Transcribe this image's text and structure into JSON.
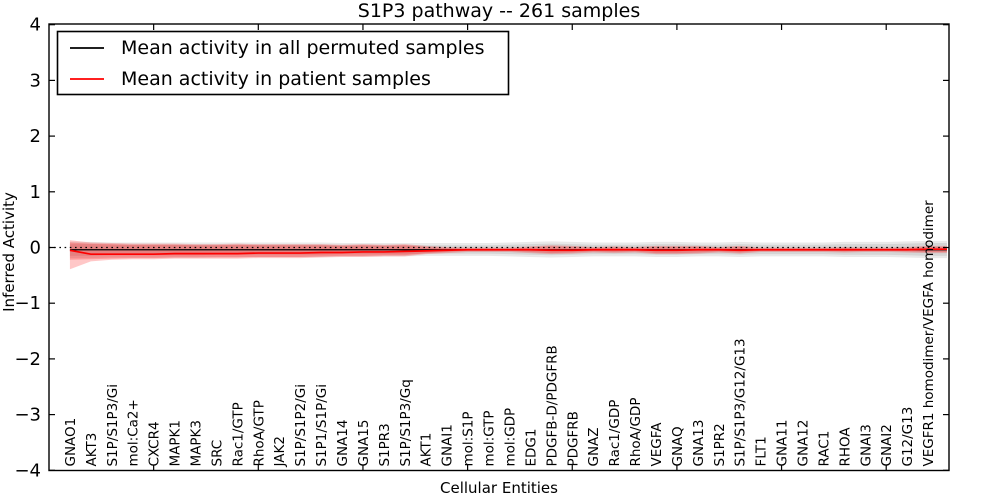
{
  "figure": {
    "title": "S1P3 pathway -- 261 samples",
    "xlabel": "Cellular Entities",
    "ylabel": "Inferred Activity",
    "legend": [
      {
        "label": "Mean activity in all permuted samples",
        "color": "#000000"
      },
      {
        "label": "Mean activity in patient samples",
        "color": "#ff0000"
      }
    ]
  },
  "chart_data": {
    "type": "line",
    "title": "S1P3 pathway -- 261 samples",
    "xlabel": "Cellular Entities",
    "ylabel": "Inferred Activity",
    "ylim": [
      -4,
      4
    ],
    "yticks": [
      -4,
      -3,
      -2,
      -1,
      0,
      1,
      2,
      3,
      4
    ],
    "xtick_indices": [
      4,
      9,
      14,
      19,
      24,
      29,
      34,
      39
    ],
    "grid": false,
    "zero_line": true,
    "legend_position": "upper left",
    "categories": [
      "GNAO1",
      "AKT3",
      "S1P/S1P3/Gi",
      "mol:Ca2+",
      "CXCR4",
      "MAPK1",
      "MAPK3",
      "SRC",
      "Rac1/GTP",
      "RhoA/GTP",
      "JAK2",
      "S1P/S1P2/Gi",
      "S1P1/S1P/Gi",
      "GNA14",
      "GNA15",
      "S1PR3",
      "S1P/S1P3/Gq",
      "AKT1",
      "GNAI1",
      "mol:S1P",
      "mol:GTP",
      "mol:GDP",
      "EDG1",
      "PDGFB-D/PDGFRB",
      "PDGFRB",
      "GNAZ",
      "Rac1/GDP",
      "RhoA/GDP",
      "VEGFA",
      "GNAQ",
      "GNA13",
      "S1PR2",
      "S1P/S1P3/G12/G13",
      "FLT1",
      "GNA11",
      "GNA12",
      "RAC1",
      "RHOA",
      "GNAI3",
      "GNAI2",
      "G12/G13",
      "VEGFR1 homodimer/VEGFA homodimer"
    ],
    "series": [
      {
        "name": "Mean activity in all permuted samples",
        "color": "#000000",
        "band_color": "#555555",
        "band_opacity": 0.13,
        "values": [
          -0.04,
          -0.04,
          -0.04,
          -0.04,
          -0.04,
          -0.04,
          -0.04,
          -0.04,
          -0.04,
          -0.04,
          -0.04,
          -0.04,
          -0.04,
          -0.04,
          -0.04,
          -0.04,
          -0.04,
          -0.04,
          -0.04,
          -0.04,
          -0.04,
          -0.04,
          -0.04,
          -0.04,
          -0.04,
          -0.04,
          -0.04,
          -0.04,
          -0.04,
          -0.04,
          -0.04,
          -0.04,
          -0.04,
          -0.04,
          -0.04,
          -0.04,
          -0.04,
          -0.04,
          -0.04,
          -0.04,
          -0.04,
          -0.04
        ],
        "band_inner": {
          "upper": [
            0.06,
            0.06,
            0.05,
            0.05,
            0.05,
            0.05,
            0.05,
            0.05,
            0.05,
            0.05,
            0.05,
            0.05,
            0.05,
            0.04,
            0.04,
            0.04,
            0.04,
            0.04,
            0.04,
            0.04,
            0.04,
            0.05,
            0.06,
            0.07,
            0.06,
            0.05,
            0.05,
            0.05,
            0.06,
            0.06,
            0.05,
            0.05,
            0.06,
            0.05,
            0.05,
            0.05,
            0.05,
            0.06,
            0.06,
            0.06,
            0.07,
            0.08
          ],
          "lower": [
            -0.15,
            -0.15,
            -0.14,
            -0.14,
            -0.14,
            -0.14,
            -0.14,
            -0.13,
            -0.13,
            -0.13,
            -0.13,
            -0.13,
            -0.13,
            -0.12,
            -0.12,
            -0.12,
            -0.12,
            -0.11,
            -0.11,
            -0.11,
            -0.11,
            -0.12,
            -0.13,
            -0.14,
            -0.13,
            -0.12,
            -0.12,
            -0.12,
            -0.13,
            -0.13,
            -0.12,
            -0.12,
            -0.13,
            -0.12,
            -0.12,
            -0.12,
            -0.12,
            -0.13,
            -0.13,
            -0.13,
            -0.14,
            -0.15
          ]
        },
        "band_outer": {
          "upper": [
            0.1,
            0.1,
            0.09,
            0.09,
            0.09,
            0.09,
            0.09,
            0.09,
            0.09,
            0.09,
            0.09,
            0.09,
            0.09,
            0.08,
            0.08,
            0.08,
            0.08,
            0.08,
            0.08,
            0.08,
            0.08,
            0.09,
            0.1,
            0.11,
            0.1,
            0.09,
            0.09,
            0.09,
            0.1,
            0.1,
            0.09,
            0.09,
            0.1,
            0.09,
            0.09,
            0.09,
            0.09,
            0.1,
            0.1,
            0.1,
            0.11,
            0.12
          ],
          "lower": [
            -0.19,
            -0.19,
            -0.18,
            -0.18,
            -0.18,
            -0.18,
            -0.18,
            -0.17,
            -0.17,
            -0.17,
            -0.17,
            -0.17,
            -0.17,
            -0.16,
            -0.16,
            -0.16,
            -0.16,
            -0.15,
            -0.15,
            -0.15,
            -0.15,
            -0.16,
            -0.17,
            -0.18,
            -0.17,
            -0.16,
            -0.16,
            -0.16,
            -0.17,
            -0.17,
            -0.16,
            -0.16,
            -0.17,
            -0.16,
            -0.16,
            -0.16,
            -0.16,
            -0.17,
            -0.17,
            -0.17,
            -0.18,
            -0.19
          ]
        }
      },
      {
        "name": "Mean activity in patient samples",
        "color": "#ff0000",
        "band_color": "#ff0000",
        "band_opacity": 0.22,
        "values": [
          -0.05,
          -0.12,
          -0.12,
          -0.12,
          -0.12,
          -0.11,
          -0.11,
          -0.11,
          -0.11,
          -0.1,
          -0.1,
          -0.1,
          -0.09,
          -0.09,
          -0.08,
          -0.08,
          -0.07,
          -0.06,
          -0.05,
          -0.04,
          -0.04,
          -0.04,
          -0.04,
          -0.05,
          -0.05,
          -0.04,
          -0.04,
          -0.04,
          -0.05,
          -0.05,
          -0.04,
          -0.04,
          -0.05,
          -0.04,
          -0.04,
          -0.04,
          -0.04,
          -0.04,
          -0.04,
          -0.04,
          -0.04,
          -0.03
        ],
        "band_inner": {
          "upper": [
            0.09,
            0.07,
            0.06,
            0.05,
            0.05,
            0.05,
            0.04,
            0.04,
            0.05,
            0.04,
            0.04,
            0.04,
            0.04,
            0.03,
            0.04,
            0.03,
            0.04,
            0.01,
            -0.01,
            -0.02,
            -0.02,
            -0.02,
            0.0,
            0.02,
            0.01,
            -0.01,
            0.0,
            -0.01,
            0.01,
            0.01,
            0.01,
            -0.01,
            0.01,
            -0.02,
            -0.02,
            -0.02,
            -0.02,
            -0.01,
            -0.02,
            -0.02,
            -0.01,
            0.01
          ],
          "lower": [
            -0.22,
            -0.21,
            -0.2,
            -0.19,
            -0.19,
            -0.18,
            -0.18,
            -0.18,
            -0.18,
            -0.17,
            -0.17,
            -0.17,
            -0.16,
            -0.15,
            -0.15,
            -0.14,
            -0.14,
            -0.1,
            -0.08,
            -0.06,
            -0.06,
            -0.06,
            -0.08,
            -0.1,
            -0.09,
            -0.07,
            -0.08,
            -0.07,
            -0.1,
            -0.1,
            -0.09,
            -0.07,
            -0.09,
            -0.06,
            -0.06,
            -0.06,
            -0.06,
            -0.07,
            -0.06,
            -0.06,
            -0.07,
            -0.08
          ]
        },
        "band_outer": {
          "upper": [
            0.13,
            0.09,
            0.08,
            0.07,
            0.07,
            0.07,
            0.06,
            0.06,
            0.07,
            0.06,
            0.06,
            0.06,
            0.06,
            0.05,
            0.06,
            0.05,
            0.06,
            0.03,
            0.01,
            0.0,
            0.0,
            0.0,
            0.02,
            0.04,
            0.03,
            0.01,
            0.02,
            0.01,
            0.03,
            0.03,
            0.03,
            0.01,
            0.03,
            0.0,
            0.0,
            0.0,
            0.0,
            0.01,
            0.0,
            0.0,
            0.01,
            0.03
          ],
          "lower": [
            -0.39,
            -0.25,
            -0.22,
            -0.21,
            -0.21,
            -0.2,
            -0.2,
            -0.2,
            -0.2,
            -0.19,
            -0.19,
            -0.19,
            -0.18,
            -0.17,
            -0.17,
            -0.16,
            -0.16,
            -0.12,
            -0.1,
            -0.08,
            -0.08,
            -0.08,
            -0.1,
            -0.12,
            -0.11,
            -0.09,
            -0.1,
            -0.09,
            -0.12,
            -0.12,
            -0.11,
            -0.09,
            -0.11,
            -0.08,
            -0.08,
            -0.08,
            -0.08,
            -0.09,
            -0.08,
            -0.08,
            -0.09,
            -0.1
          ]
        }
      }
    ]
  }
}
